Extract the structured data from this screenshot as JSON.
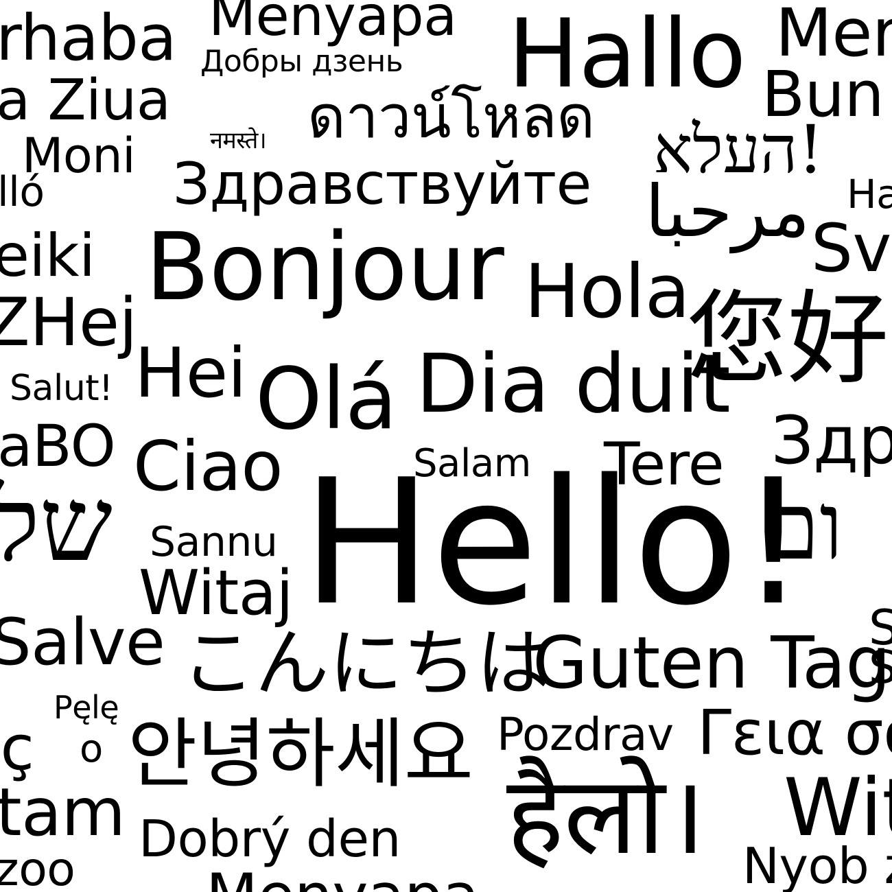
{
  "words": {
    "merhaba": "rhaba",
    "menyapa_top": "Menyapa",
    "hallo": "Hallo",
    "mer": "Mer",
    "dobry_dzen": "Добры дзень",
    "buna_ziua": "a Ziua",
    "bun": "Bun",
    "thai": "ดาวน์โหลด",
    "namaste": "नमस्ते।",
    "moni": "Moni",
    "hebrew_hello": "העלא!",
    "hallo_hu": "lló",
    "zdravstvuyte": "Здравствуйте",
    "ha": "Ha",
    "arabic": "مرحبا",
    "sveiki": "eiki",
    "bonjour": "Bonjour",
    "sv": "Sv",
    "hola": "Hola",
    "hej": "ZHej",
    "chinese": "您好",
    "salut": "Salut!",
    "hei": "Hei",
    "ola": "Olá",
    "dia_duit": "Dia duit",
    "zdravo": "aBO",
    "zdr": "Здр",
    "ciao": "Ciao",
    "salam": "Salam",
    "tere": "Tere",
    "hello": "Hello!",
    "shalom_left": "של",
    "shalom_right": "ום",
    "sannu": "Sannu",
    "witaj": "Witaj",
    "salve": "Salve",
    "s_right": "S",
    "japanese": "こんにちは",
    "guten_tag": "Guten Tag",
    "s_right2": "S",
    "pele": "Pęlę",
    "pele_o": "o",
    "korean": "안녕하세요",
    "pozdrav": "Pozdrav",
    "greek": "Γεια σα",
    "merhaba_c": "ıç",
    "hindi_hello": "हैलो।",
    "salam_tam": "tam",
    "wit": "Wit",
    "dobry_den": "Dobrý den",
    "nyob_zoo": "Nyob z",
    "zoo": "zoo",
    "menyapa_bottom": "Menyapa"
  }
}
